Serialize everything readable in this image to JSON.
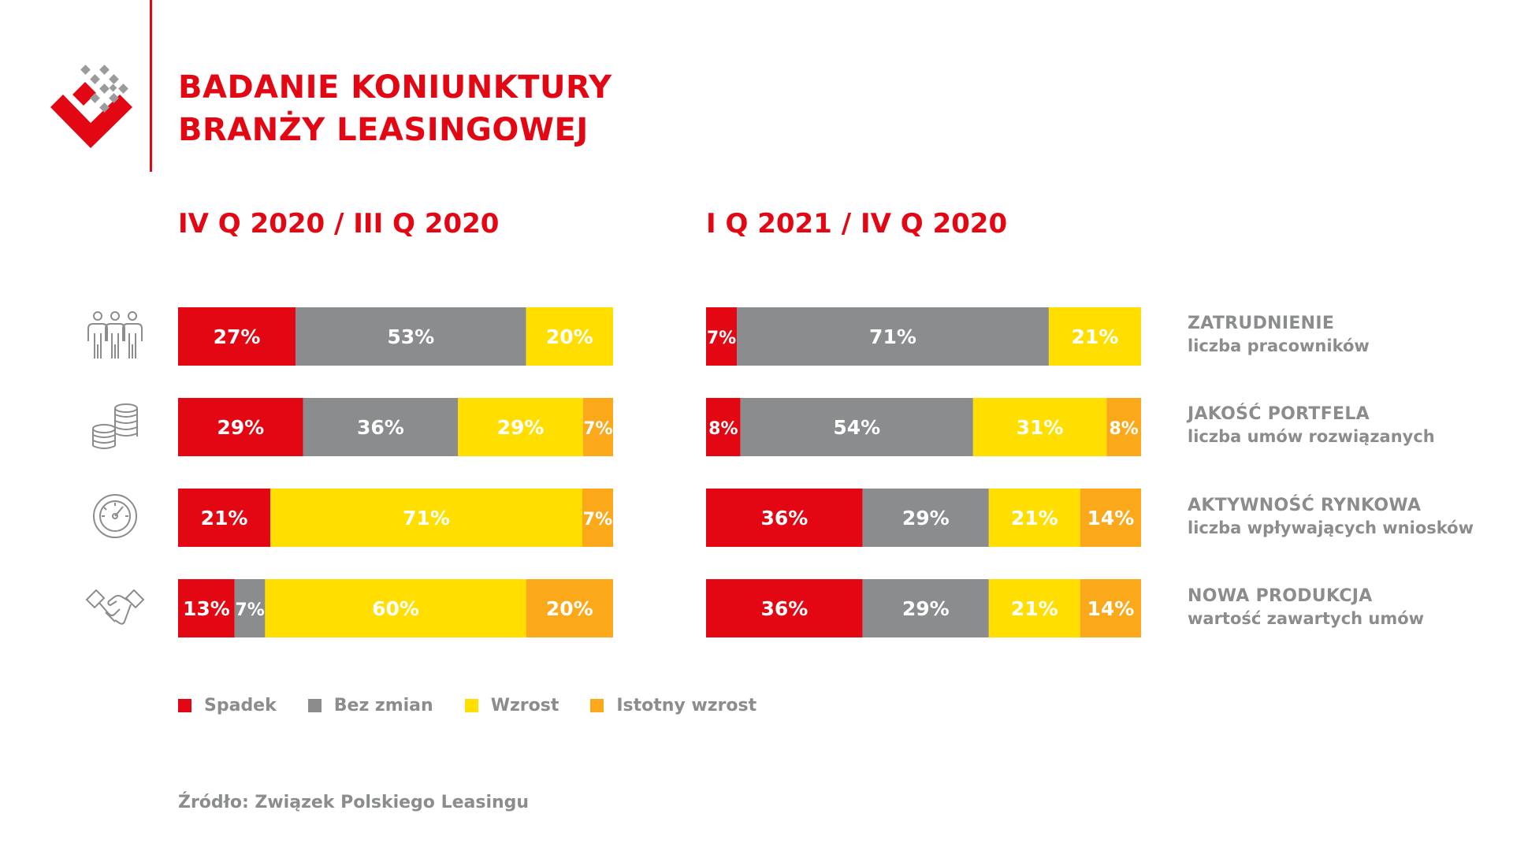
{
  "header": {
    "title_line1": "BADANIE KONIUNKTURY",
    "title_line2": "BRANŻY LEASINGOWEJ"
  },
  "colors": {
    "Spadek": "#e30613",
    "Bez zmian": "#8a8c8e",
    "Wzrost": "#ffde00",
    "Istotny wzrost": "#fba81a",
    "accent": "#e30613",
    "text_gray": "#8a8c8e"
  },
  "icons": [
    "people-icon",
    "coins-icon",
    "gauge-icon",
    "handshake-icon"
  ],
  "chart_data": [
    {
      "type": "bar",
      "stacked": true,
      "orientation": "horizontal",
      "title": "IV Q 2020 / III Q 2020",
      "categories": [
        "ZATRUDNIENIE",
        "JAKOŚĆ PORTFELA",
        "AKTYWNOŚĆ RYNKOWA",
        "NOWA PRODUKCJA"
      ],
      "series": [
        {
          "name": "Spadek",
          "values": [
            27,
            29,
            21,
            13
          ]
        },
        {
          "name": "Bez zmian",
          "values": [
            53,
            36,
            0,
            7
          ]
        },
        {
          "name": "Wzrost",
          "values": [
            20,
            29,
            71,
            60
          ]
        },
        {
          "name": "Istotny wzrost",
          "values": [
            0,
            7,
            7,
            20
          ]
        }
      ],
      "labels": [
        [
          "27%",
          "53%",
          "20%",
          ""
        ],
        [
          "29%",
          "36%",
          "29%",
          "7%"
        ],
        [
          "21%",
          "",
          "71%",
          "7%"
        ],
        [
          "13%",
          "7%",
          "60%",
          "20%"
        ]
      ]
    },
    {
      "type": "bar",
      "stacked": true,
      "orientation": "horizontal",
      "title": "I Q 2021 / IV Q 2020",
      "categories": [
        "ZATRUDNIENIE",
        "JAKOŚĆ PORTFELA",
        "AKTYWNOŚĆ RYNKOWA",
        "NOWA PRODUKCJA"
      ],
      "series": [
        {
          "name": "Spadek",
          "values": [
            7,
            8,
            36,
            36
          ]
        },
        {
          "name": "Bez zmian",
          "values": [
            71,
            54,
            29,
            29
          ]
        },
        {
          "name": "Wzrost",
          "values": [
            21,
            31,
            21,
            21
          ]
        },
        {
          "name": "Istotny wzrost",
          "values": [
            0,
            8,
            14,
            14
          ]
        }
      ],
      "labels": [
        [
          "7%",
          "71%",
          "21%",
          ""
        ],
        [
          "8%",
          "54%",
          "31%",
          "8%"
        ],
        [
          "36%",
          "29%",
          "21%",
          "14%"
        ],
        [
          "36%",
          "29%",
          "21%",
          "14%"
        ]
      ]
    }
  ],
  "categories": [
    {
      "title": "ZATRUDNIENIE",
      "subtitle": "liczba pracowników"
    },
    {
      "title": "JAKOŚĆ PORTFELA",
      "subtitle": "liczba umów rozwiązanych"
    },
    {
      "title": "AKTYWNOŚĆ RYNKOWA",
      "subtitle": "liczba wpływających wniosków"
    },
    {
      "title": "NOWA PRODUKCJA",
      "subtitle": "wartość zawartych umów"
    }
  ],
  "legend": [
    {
      "label": "Spadek",
      "color": "#e30613"
    },
    {
      "label": "Bez zmian",
      "color": "#8a8c8e"
    },
    {
      "label": "Wzrost",
      "color": "#ffde00"
    },
    {
      "label": "Istotny wzrost",
      "color": "#fba81a"
    }
  ],
  "source": "Źródło: Związek Polskiego Leasingu"
}
